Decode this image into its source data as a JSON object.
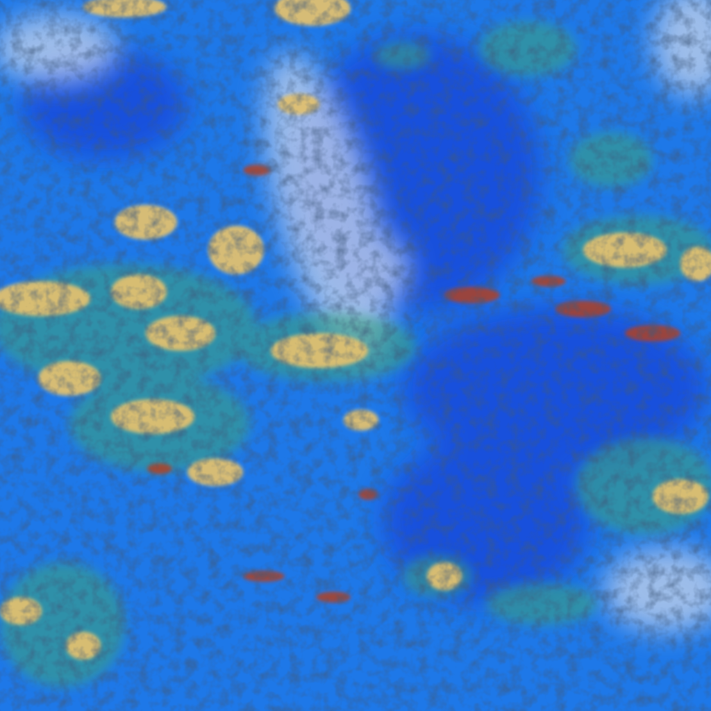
{
  "image": {
    "kind": "false-color satellite imagery",
    "palette": {
      "background_blue": "#1e78e8",
      "deep_blue": "#1240d8",
      "haze": "#c8d4ea",
      "cloud_yellow": "#e0c070",
      "cloud_green": "#3aa080",
      "cloud_red": "#b04020",
      "shadow": "#101830"
    }
  }
}
